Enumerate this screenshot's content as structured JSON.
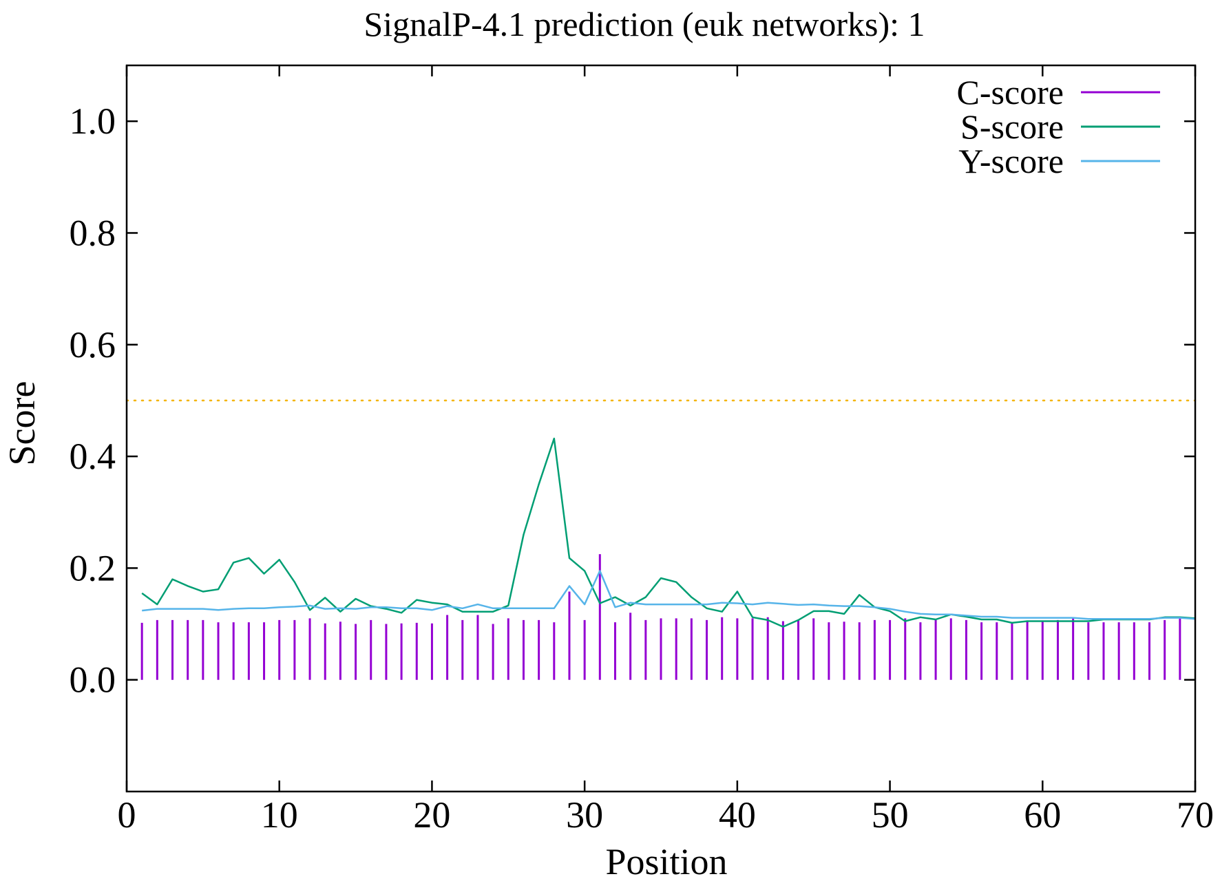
{
  "chart_data": {
    "type": "line",
    "title": "SignalP-4.1 prediction (euk networks): 1",
    "xlabel": "Position",
    "ylabel": "Score",
    "xlim": [
      0,
      70
    ],
    "ylim": [
      -0.2,
      1.1
    ],
    "x_ticks": [
      0,
      10,
      20,
      30,
      40,
      50,
      60,
      70
    ],
    "y_ticks": [
      0.0,
      0.2,
      0.4,
      0.6,
      0.8,
      1.0
    ],
    "x_tick_labels": [
      "0",
      "10",
      "20",
      "30",
      "40",
      "50",
      "60",
      "70"
    ],
    "y_tick_labels": [
      "0.0",
      "0.2",
      "0.4",
      "0.6",
      "0.8",
      "1.0"
    ],
    "grid": false,
    "legend_position": "top-right",
    "threshold": {
      "y": 0.5,
      "color": "#f4b400",
      "style": "dotted"
    },
    "series": [
      {
        "name": "C-score",
        "style": "impulse",
        "color": "#9400d3",
        "x": [
          1,
          2,
          3,
          4,
          5,
          6,
          7,
          8,
          9,
          10,
          11,
          12,
          13,
          14,
          15,
          16,
          17,
          18,
          19,
          20,
          21,
          22,
          23,
          24,
          25,
          26,
          27,
          28,
          29,
          30,
          31,
          32,
          33,
          34,
          35,
          36,
          37,
          38,
          39,
          40,
          41,
          42,
          43,
          44,
          45,
          46,
          47,
          48,
          49,
          50,
          51,
          52,
          53,
          54,
          55,
          56,
          57,
          58,
          59,
          60,
          61,
          62,
          63,
          64,
          65,
          66,
          67,
          68,
          69
        ],
        "values": [
          0.102,
          0.107,
          0.107,
          0.107,
          0.107,
          0.103,
          0.103,
          0.103,
          0.103,
          0.107,
          0.107,
          0.11,
          0.101,
          0.104,
          0.1,
          0.107,
          0.1,
          0.101,
          0.102,
          0.101,
          0.116,
          0.107,
          0.116,
          0.1,
          0.11,
          0.107,
          0.107,
          0.103,
          0.158,
          0.107,
          0.225,
          0.103,
          0.12,
          0.107,
          0.11,
          0.11,
          0.11,
          0.107,
          0.112,
          0.11,
          0.11,
          0.112,
          0.105,
          0.107,
          0.11,
          0.103,
          0.104,
          0.103,
          0.107,
          0.107,
          0.11,
          0.103,
          0.107,
          0.11,
          0.107,
          0.103,
          0.103,
          0.103,
          0.105,
          0.105,
          0.107,
          0.11,
          0.103,
          0.103,
          0.103,
          0.103,
          0.103,
          0.107,
          0.11
        ]
      },
      {
        "name": "S-score",
        "style": "line",
        "color": "#009e73",
        "x": [
          1,
          2,
          3,
          4,
          5,
          6,
          7,
          8,
          9,
          10,
          11,
          12,
          13,
          14,
          15,
          16,
          17,
          18,
          19,
          20,
          21,
          22,
          23,
          24,
          25,
          26,
          27,
          28,
          29,
          30,
          31,
          32,
          33,
          34,
          35,
          36,
          37,
          38,
          39,
          40,
          41,
          42,
          43,
          44,
          45,
          46,
          47,
          48,
          49,
          50,
          51,
          52,
          53,
          54,
          55,
          56,
          57,
          58,
          59,
          60,
          61,
          62,
          63,
          64,
          65,
          66,
          67,
          68,
          69,
          70
        ],
        "values": [
          0.155,
          0.135,
          0.18,
          0.168,
          0.158,
          0.162,
          0.21,
          0.218,
          0.19,
          0.215,
          0.175,
          0.125,
          0.147,
          0.122,
          0.145,
          0.132,
          0.127,
          0.12,
          0.143,
          0.138,
          0.135,
          0.122,
          0.122,
          0.122,
          0.133,
          0.26,
          0.35,
          0.432,
          0.218,
          0.195,
          0.137,
          0.148,
          0.133,
          0.148,
          0.182,
          0.175,
          0.148,
          0.128,
          0.122,
          0.158,
          0.112,
          0.107,
          0.095,
          0.107,
          0.123,
          0.123,
          0.118,
          0.152,
          0.13,
          0.123,
          0.105,
          0.112,
          0.108,
          0.117,
          0.113,
          0.108,
          0.108,
          0.102,
          0.105,
          0.105,
          0.105,
          0.105,
          0.105,
          0.108,
          0.108,
          0.108,
          0.108,
          0.112,
          0.112,
          0.11
        ]
      },
      {
        "name": "Y-score",
        "style": "line",
        "color": "#56b4e9",
        "x": [
          1,
          2,
          3,
          4,
          5,
          6,
          7,
          8,
          9,
          10,
          11,
          12,
          13,
          14,
          15,
          16,
          17,
          18,
          19,
          20,
          21,
          22,
          23,
          24,
          25,
          26,
          27,
          28,
          29,
          30,
          31,
          32,
          33,
          34,
          35,
          36,
          37,
          38,
          39,
          40,
          41,
          42,
          43,
          44,
          45,
          46,
          47,
          48,
          49,
          50,
          51,
          52,
          53,
          54,
          55,
          56,
          57,
          58,
          59,
          60,
          61,
          62,
          63,
          64,
          65,
          66,
          67,
          68,
          69,
          70
        ],
        "values": [
          0.124,
          0.127,
          0.127,
          0.127,
          0.127,
          0.125,
          0.127,
          0.128,
          0.128,
          0.13,
          0.131,
          0.133,
          0.127,
          0.128,
          0.127,
          0.13,
          0.13,
          0.128,
          0.128,
          0.125,
          0.132,
          0.128,
          0.135,
          0.128,
          0.128,
          0.128,
          0.128,
          0.128,
          0.168,
          0.135,
          0.195,
          0.13,
          0.138,
          0.135,
          0.135,
          0.135,
          0.135,
          0.135,
          0.138,
          0.137,
          0.135,
          0.138,
          0.136,
          0.134,
          0.135,
          0.133,
          0.132,
          0.132,
          0.13,
          0.127,
          0.122,
          0.118,
          0.117,
          0.117,
          0.115,
          0.113,
          0.113,
          0.111,
          0.111,
          0.111,
          0.111,
          0.111,
          0.109,
          0.109,
          0.109,
          0.109,
          0.109,
          0.111,
          0.111,
          0.109
        ]
      }
    ]
  }
}
